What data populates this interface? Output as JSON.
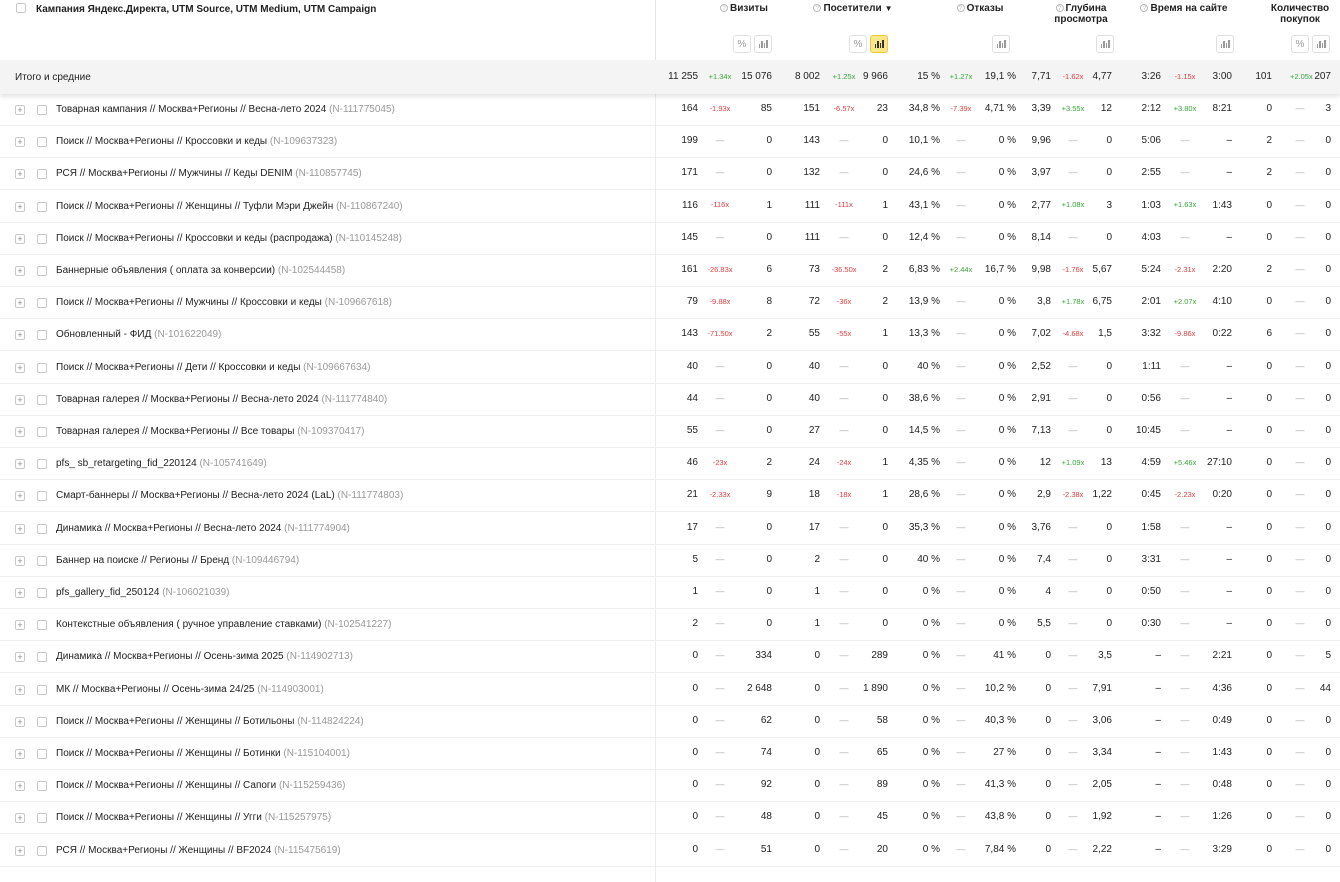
{
  "header": {
    "dimension_title": "Кампания Яндекс.Директа, UTM Source, UTM Medium, UTM Campaign",
    "metrics": [
      {
        "title": "Визиты",
        "percent_label": "%"
      },
      {
        "title": "Посетители",
        "sort": "▼",
        "percent_label": "%"
      },
      {
        "title": "Отказы"
      },
      {
        "title": "Глубина просмотра"
      },
      {
        "title": "Время на сайте"
      },
      {
        "title": "Количество покупок",
        "percent_label": "%"
      }
    ]
  },
  "totals": {
    "label": "Итого и средние",
    "cells": [
      [
        "11 255",
        "+1.34x",
        "15 076"
      ],
      [
        "8 002",
        "+1.25x",
        "9 966"
      ],
      [
        "15 %",
        "+1.27x",
        "19,1 %"
      ],
      [
        "7,71",
        "-1.62x",
        "4,77"
      ],
      [
        "3:26",
        "-1.15x",
        "3:00"
      ],
      [
        "101",
        "+2.05x",
        "207"
      ]
    ]
  },
  "rows": [
    {
      "name": "Товарная кампания // Москва+Регионы // Весна-лето 2024",
      "id": "(N-111775045)",
      "cells": [
        [
          "164",
          "-1.93x",
          "85"
        ],
        [
          "151",
          "-6.57x",
          "23"
        ],
        [
          "34,8 %",
          "-7.39x",
          "4,71 %"
        ],
        [
          "3,39",
          "+3.55x",
          "12"
        ],
        [
          "2:12",
          "+3.80x",
          "8:21"
        ],
        [
          "0",
          "—",
          "3"
        ]
      ]
    },
    {
      "name": "Поиск // Москва+Регионы // Кроссовки и кеды",
      "id": "(N-109637323)",
      "cells": [
        [
          "199",
          "—",
          "0"
        ],
        [
          "143",
          "—",
          "0"
        ],
        [
          "10,1 %",
          "—",
          "0 %"
        ],
        [
          "9,96",
          "—",
          "0"
        ],
        [
          "5:06",
          "—",
          "–"
        ],
        [
          "2",
          "—",
          "0"
        ]
      ]
    },
    {
      "name": "РСЯ // Москва+Регионы // Мужчины // Кеды DENIM",
      "id": "(N-110857745)",
      "cells": [
        [
          "171",
          "—",
          "0"
        ],
        [
          "132",
          "—",
          "0"
        ],
        [
          "24,6 %",
          "—",
          "0 %"
        ],
        [
          "3,97",
          "—",
          "0"
        ],
        [
          "2:55",
          "—",
          "–"
        ],
        [
          "2",
          "—",
          "0"
        ]
      ]
    },
    {
      "name": "Поиск // Москва+Регионы // Женщины // Туфли Мэри Джейн",
      "id": "(N-110867240)",
      "cells": [
        [
          "116",
          "-116x",
          "1"
        ],
        [
          "111",
          "-111x",
          "1"
        ],
        [
          "43,1 %",
          "—",
          "0 %"
        ],
        [
          "2,77",
          "+1.08x",
          "3"
        ],
        [
          "1:03",
          "+1.63x",
          "1:43"
        ],
        [
          "0",
          "—",
          "0"
        ]
      ]
    },
    {
      "name": "Поиск // Москва+Регионы // Кроссовки и кеды (распродажа)",
      "id": "(N-110145248)",
      "cells": [
        [
          "145",
          "—",
          "0"
        ],
        [
          "111",
          "—",
          "0"
        ],
        [
          "12,4 %",
          "—",
          "0 %"
        ],
        [
          "8,14",
          "—",
          "0"
        ],
        [
          "4:03",
          "—",
          "–"
        ],
        [
          "0",
          "—",
          "0"
        ]
      ]
    },
    {
      "name": "Баннерные объявления ( оплата за конверсии)",
      "id": "(N-102544458)",
      "cells": [
        [
          "161",
          "-26.83x",
          "6"
        ],
        [
          "73",
          "-36.50x",
          "2"
        ],
        [
          "6,83 %",
          "+2.44x",
          "16,7 %"
        ],
        [
          "9,98",
          "-1.76x",
          "5,67"
        ],
        [
          "5:24",
          "-2.31x",
          "2:20"
        ],
        [
          "2",
          "—",
          "0"
        ]
      ]
    },
    {
      "name": "Поиск // Москва+Регионы // Мужчины // Кроссовки и кеды",
      "id": "(N-109667618)",
      "cells": [
        [
          "79",
          "-9.88x",
          "8"
        ],
        [
          "72",
          "-36x",
          "2"
        ],
        [
          "13,9 %",
          "—",
          "0 %"
        ],
        [
          "3,8",
          "+1.78x",
          "6,75"
        ],
        [
          "2:01",
          "+2.07x",
          "4:10"
        ],
        [
          "0",
          "—",
          "0"
        ]
      ]
    },
    {
      "name": "Обновленный - ФИД",
      "id": "(N-101622049)",
      "cells": [
        [
          "143",
          "-71.50x",
          "2"
        ],
        [
          "55",
          "-55x",
          "1"
        ],
        [
          "13,3 %",
          "—",
          "0 %"
        ],
        [
          "7,02",
          "-4.68x",
          "1,5"
        ],
        [
          "3:32",
          "-9.86x",
          "0:22"
        ],
        [
          "6",
          "—",
          "0"
        ]
      ]
    },
    {
      "name": "Поиск // Москва+Регионы // Дети // Кроссовки и кеды",
      "id": "(N-109667634)",
      "cells": [
        [
          "40",
          "—",
          "0"
        ],
        [
          "40",
          "—",
          "0"
        ],
        [
          "40 %",
          "—",
          "0 %"
        ],
        [
          "2,52",
          "—",
          "0"
        ],
        [
          "1:11",
          "—",
          "–"
        ],
        [
          "0",
          "—",
          "0"
        ]
      ]
    },
    {
      "name": "Товарная галерея // Москва+Регионы // Весна-лето 2024",
      "id": "(N-111774840)",
      "cells": [
        [
          "44",
          "—",
          "0"
        ],
        [
          "40",
          "—",
          "0"
        ],
        [
          "38,6 %",
          "—",
          "0 %"
        ],
        [
          "2,91",
          "—",
          "0"
        ],
        [
          "0:56",
          "—",
          "–"
        ],
        [
          "0",
          "—",
          "0"
        ]
      ]
    },
    {
      "name": "Товарная галерея // Москва+Регионы // Все товары",
      "id": "(N-109370417)",
      "cells": [
        [
          "55",
          "—",
          "0"
        ],
        [
          "27",
          "—",
          "0"
        ],
        [
          "14,5 %",
          "—",
          "0 %"
        ],
        [
          "7,13",
          "—",
          "0"
        ],
        [
          "10:45",
          "—",
          "–"
        ],
        [
          "0",
          "—",
          "0"
        ]
      ]
    },
    {
      "name": "pfs_ sb_retargeting_fid_220124",
      "id": "(N-105741649)",
      "cells": [
        [
          "46",
          "-23x",
          "2"
        ],
        [
          "24",
          "-24x",
          "1"
        ],
        [
          "4,35 %",
          "—",
          "0 %"
        ],
        [
          "12",
          "+1.09x",
          "13"
        ],
        [
          "4:59",
          "+5.46x",
          "27:10"
        ],
        [
          "0",
          "—",
          "0"
        ]
      ]
    },
    {
      "name": "Смарт-баннеры // Москва+Регионы // Весна-лето 2024 (LaL)",
      "id": "(N-111774803)",
      "cells": [
        [
          "21",
          "-2.33x",
          "9"
        ],
        [
          "18",
          "-18x",
          "1"
        ],
        [
          "28,6 %",
          "—",
          "0 %"
        ],
        [
          "2,9",
          "-2.38x",
          "1,22"
        ],
        [
          "0:45",
          "-2.23x",
          "0:20"
        ],
        [
          "0",
          "—",
          "0"
        ]
      ]
    },
    {
      "name": "Динамика // Москва+Регионы // Весна-лето 2024",
      "id": "(N-111774904)",
      "cells": [
        [
          "17",
          "—",
          "0"
        ],
        [
          "17",
          "—",
          "0"
        ],
        [
          "35,3 %",
          "—",
          "0 %"
        ],
        [
          "3,76",
          "—",
          "0"
        ],
        [
          "1:58",
          "—",
          "–"
        ],
        [
          "0",
          "—",
          "0"
        ]
      ]
    },
    {
      "name": "Баннер на поиске // Регионы // Бренд",
      "id": "(N-109446794)",
      "cells": [
        [
          "5",
          "—",
          "0"
        ],
        [
          "2",
          "—",
          "0"
        ],
        [
          "40 %",
          "—",
          "0 %"
        ],
        [
          "7,4",
          "—",
          "0"
        ],
        [
          "3:31",
          "—",
          "–"
        ],
        [
          "0",
          "—",
          "0"
        ]
      ]
    },
    {
      "name": "pfs_gallery_fid_250124",
      "id": "(N-106021039)",
      "cells": [
        [
          "1",
          "—",
          "0"
        ],
        [
          "1",
          "—",
          "0"
        ],
        [
          "0 %",
          "—",
          "0 %"
        ],
        [
          "4",
          "—",
          "0"
        ],
        [
          "0:50",
          "—",
          "–"
        ],
        [
          "0",
          "—",
          "0"
        ]
      ]
    },
    {
      "name": "Контекстные объявления ( ручное управление ставками)",
      "id": "(N-102541227)",
      "cells": [
        [
          "2",
          "—",
          "0"
        ],
        [
          "1",
          "—",
          "0"
        ],
        [
          "0 %",
          "—",
          "0 %"
        ],
        [
          "5,5",
          "—",
          "0"
        ],
        [
          "0:30",
          "—",
          "–"
        ],
        [
          "0",
          "—",
          "0"
        ]
      ]
    },
    {
      "name": "Динамика // Москва+Регионы // Осень-зима 2025",
      "id": "(N-114902713)",
      "cells": [
        [
          "0",
          "—",
          "334"
        ],
        [
          "0",
          "—",
          "289"
        ],
        [
          "0 %",
          "—",
          "41 %"
        ],
        [
          "0",
          "—",
          "3,5"
        ],
        [
          "–",
          "—",
          "2:21"
        ],
        [
          "0",
          "—",
          "5"
        ]
      ]
    },
    {
      "name": "МК // Москва+Регионы // Осень-зима 24/25",
      "id": "(N-114903001)",
      "cells": [
        [
          "0",
          "—",
          "2 648"
        ],
        [
          "0",
          "—",
          "1 890"
        ],
        [
          "0 %",
          "—",
          "10,2 %"
        ],
        [
          "0",
          "—",
          "7,91"
        ],
        [
          "–",
          "—",
          "4:36"
        ],
        [
          "0",
          "—",
          "44"
        ]
      ]
    },
    {
      "name": "Поиск // Москва+Регионы // Женщины // Ботильоны",
      "id": "(N-114824224)",
      "cells": [
        [
          "0",
          "—",
          "62"
        ],
        [
          "0",
          "—",
          "58"
        ],
        [
          "0 %",
          "—",
          "40,3 %"
        ],
        [
          "0",
          "—",
          "3,06"
        ],
        [
          "–",
          "—",
          "0:49"
        ],
        [
          "0",
          "—",
          "0"
        ]
      ]
    },
    {
      "name": "Поиск // Москва+Регионы // Женщины // Ботинки",
      "id": "(N-115104001)",
      "cells": [
        [
          "0",
          "—",
          "74"
        ],
        [
          "0",
          "—",
          "65"
        ],
        [
          "0 %",
          "—",
          "27 %"
        ],
        [
          "0",
          "—",
          "3,34"
        ],
        [
          "–",
          "—",
          "1:43"
        ],
        [
          "0",
          "—",
          "0"
        ]
      ]
    },
    {
      "name": "Поиск // Москва+Регионы // Женщины // Сапоги",
      "id": "(N-115259436)",
      "cells": [
        [
          "0",
          "—",
          "92"
        ],
        [
          "0",
          "—",
          "89"
        ],
        [
          "0 %",
          "—",
          "41,3 %"
        ],
        [
          "0",
          "—",
          "2,05"
        ],
        [
          "–",
          "—",
          "0:48"
        ],
        [
          "0",
          "—",
          "0"
        ]
      ]
    },
    {
      "name": "Поиск // Москва+Регионы // Женщины // Угги",
      "id": "(N-115257975)",
      "cells": [
        [
          "0",
          "—",
          "48"
        ],
        [
          "0",
          "—",
          "45"
        ],
        [
          "0 %",
          "—",
          "43,8 %"
        ],
        [
          "0",
          "—",
          "1,92"
        ],
        [
          "–",
          "—",
          "1:26"
        ],
        [
          "0",
          "—",
          "0"
        ]
      ]
    },
    {
      "name": "РСЯ // Москва+Регионы // Женщины // BF2024",
      "id": "(N-115475619)",
      "cells": [
        [
          "0",
          "—",
          "51"
        ],
        [
          "0",
          "—",
          "20"
        ],
        [
          "0 %",
          "—",
          "7,84 %"
        ],
        [
          "0",
          "—",
          "2,22"
        ],
        [
          "–",
          "—",
          "3:29"
        ],
        [
          "0",
          "—",
          "0"
        ]
      ]
    }
  ],
  "colors": {
    "positive": "#3aa53a",
    "negative": "#e04040",
    "active_button": "#fde68a"
  }
}
